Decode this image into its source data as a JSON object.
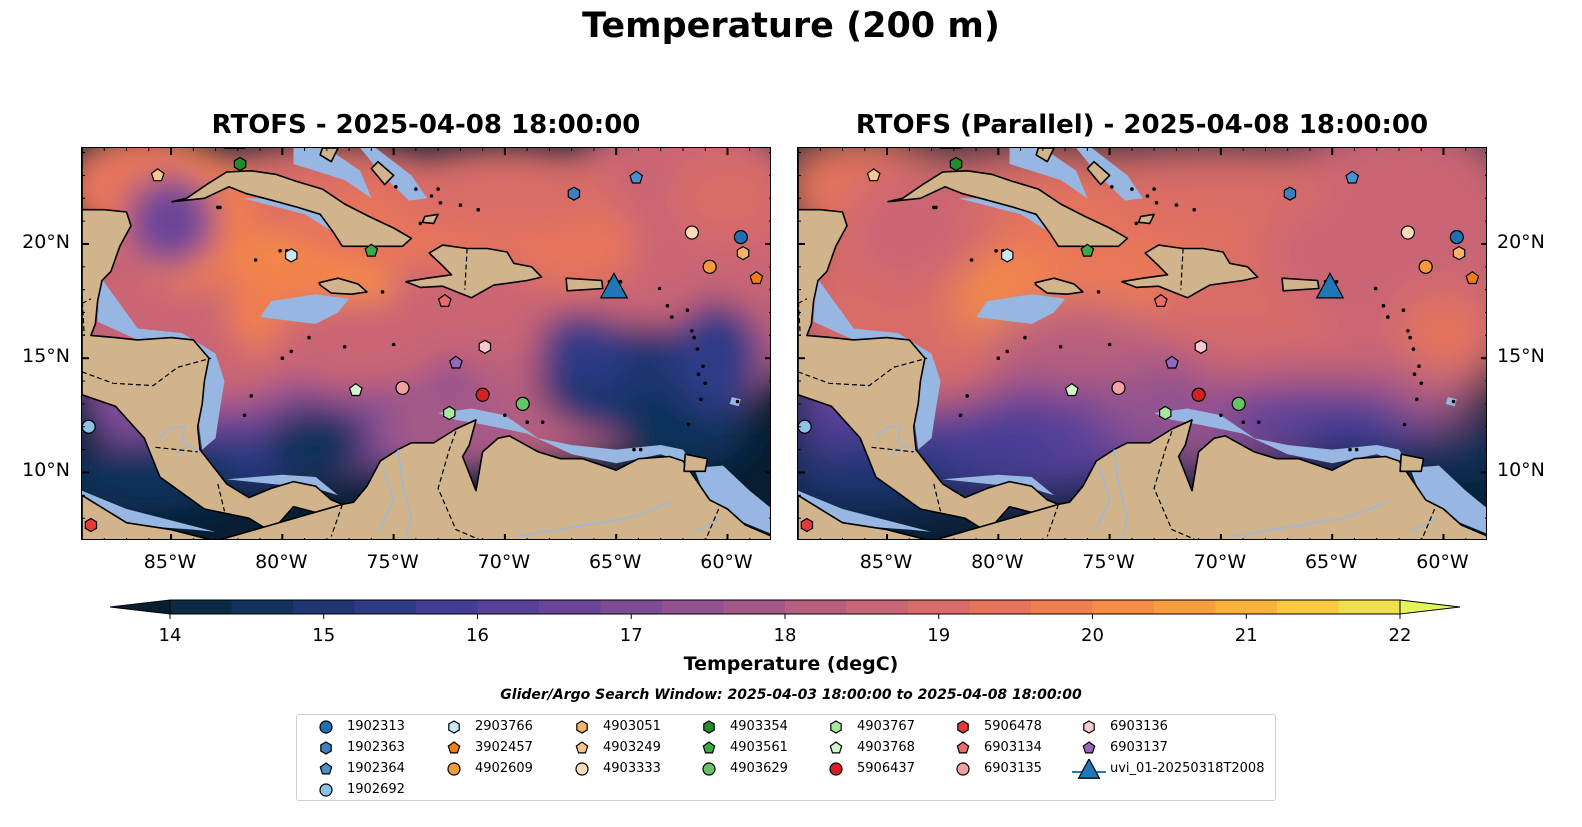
{
  "figure": {
    "title": "Temperature (200 m)",
    "window_text": "Glider/Argo Search Window: 2025-04-03 18:00:00 to 2025-04-08 18:00:00"
  },
  "panels": [
    {
      "title": "RTOFS - 2025-04-08 18:00:00",
      "tick_side": "left"
    },
    {
      "title": "RTOFS (Parallel) - 2025-04-08 18:00:00",
      "tick_side": "right"
    }
  ],
  "map_extent": {
    "lon": [
      -89,
      -58
    ],
    "lat": [
      7,
      24.2
    ]
  },
  "lon_ticks": [
    {
      "value": -85,
      "label": "85°W"
    },
    {
      "value": -80,
      "label": "80°W"
    },
    {
      "value": -75,
      "label": "75°W"
    },
    {
      "value": -70,
      "label": "70°W"
    },
    {
      "value": -65,
      "label": "65°W"
    },
    {
      "value": -60,
      "label": "60°W"
    }
  ],
  "lat_ticks": [
    {
      "value": 10,
      "label": "10°N"
    },
    {
      "value": 15,
      "label": "15°N"
    },
    {
      "value": 20,
      "label": "20°N"
    }
  ],
  "colorbar": {
    "label": "Temperature (degC)",
    "min": 14,
    "max": 22,
    "step": 0.5,
    "ticks": [
      "14",
      "15",
      "16",
      "17",
      "18",
      "19",
      "20",
      "21",
      "22"
    ],
    "colors": [
      "#0b2a45",
      "#10325c",
      "#1f3672",
      "#2e3a86",
      "#433d94",
      "#573f9a",
      "#6a4599",
      "#7e4b96",
      "#915290",
      "#a45a88",
      "#b85f7e",
      "#c96574",
      "#d86c67",
      "#e6745b",
      "#f07f4f",
      "#f68c45",
      "#f99e3f",
      "#fbb23c",
      "#f9c940",
      "#f0e050"
    ],
    "under_color": "#071e33",
    "over_color": "#e3f55b"
  },
  "legend": {
    "items": [
      {
        "id": "1902313",
        "marker": "circle",
        "color": "#1f6fb4"
      },
      {
        "id": "1902363",
        "marker": "hexagon",
        "color": "#3f7fbf"
      },
      {
        "id": "1902364",
        "marker": "pentagon",
        "color": "#4a90cc"
      },
      {
        "id": "1902692",
        "marker": "circle",
        "color": "#8ec1e6"
      },
      {
        "id": "2903766",
        "marker": "hexagon",
        "color": "#c9e8f5"
      },
      {
        "id": "3902457",
        "marker": "pentagon",
        "color": "#f07e12"
      },
      {
        "id": "4902609",
        "marker": "circle",
        "color": "#f39a3d"
      },
      {
        "id": "4903051",
        "marker": "hexagon",
        "color": "#f6b26b"
      },
      {
        "id": "4903249",
        "marker": "pentagon",
        "color": "#f9c690"
      },
      {
        "id": "4903333",
        "marker": "circle",
        "color": "#fcdcb8"
      },
      {
        "id": "4903354",
        "marker": "hexagon",
        "color": "#238b2c"
      },
      {
        "id": "4903561",
        "marker": "pentagon",
        "color": "#3ea845"
      },
      {
        "id": "4903629",
        "marker": "circle",
        "color": "#66c466"
      },
      {
        "id": "4903767",
        "marker": "hexagon",
        "color": "#a9e6a0"
      },
      {
        "id": "4903768",
        "marker": "pentagon",
        "color": "#d4f5c9"
      },
      {
        "id": "5906437",
        "marker": "circle",
        "color": "#d62020"
      },
      {
        "id": "5906478",
        "marker": "hexagon",
        "color": "#e33a3a"
      },
      {
        "id": "6903134",
        "marker": "pentagon",
        "color": "#ec6b6b"
      },
      {
        "id": "6903135",
        "marker": "circle",
        "color": "#f3a0a0"
      },
      {
        "id": "6903136",
        "marker": "hexagon",
        "color": "#f9c9cf"
      },
      {
        "id": "6903137",
        "marker": "pentagon",
        "color": "#9467bd"
      },
      {
        "id": "uvi_01-20250318T2008",
        "marker": "triangle",
        "color": "#1f77b4"
      }
    ]
  },
  "observations": [
    {
      "id": "1902313",
      "lon": -59.4,
      "lat": 20.3
    },
    {
      "id": "1902363",
      "lon": -66.9,
      "lat": 22.2
    },
    {
      "id": "1902364",
      "lon": -64.1,
      "lat": 22.9
    },
    {
      "id": "1902692",
      "lon": -88.7,
      "lat": 12.0
    },
    {
      "id": "2903766",
      "lon": -79.6,
      "lat": 19.5
    },
    {
      "id": "3902457",
      "lon": -58.7,
      "lat": 18.5
    },
    {
      "id": "4902609",
      "lon": -60.8,
      "lat": 19.0
    },
    {
      "id": "4903051",
      "lon": -59.3,
      "lat": 19.6
    },
    {
      "id": "4903249",
      "lon": -85.6,
      "lat": 23.0
    },
    {
      "id": "4903333",
      "lon": -61.6,
      "lat": 20.5
    },
    {
      "id": "4903354",
      "lon": -81.9,
      "lat": 23.5
    },
    {
      "id": "4903561",
      "lon": -76.0,
      "lat": 19.7
    },
    {
      "id": "4903629",
      "lon": -69.2,
      "lat": 13.0
    },
    {
      "id": "4903767",
      "lon": -72.5,
      "lat": 12.6
    },
    {
      "id": "4903768",
      "lon": -76.7,
      "lat": 13.6
    },
    {
      "id": "5906437",
      "lon": -71.0,
      "lat": 13.4
    },
    {
      "id": "5906478",
      "lon": -88.6,
      "lat": 7.7
    },
    {
      "id": "6903134",
      "lon": -72.7,
      "lat": 17.5
    },
    {
      "id": "6903135",
      "lon": -74.6,
      "lat": 13.7
    },
    {
      "id": "6903136",
      "lon": -70.9,
      "lat": 15.5
    },
    {
      "id": "6903137",
      "lon": -72.2,
      "lat": 14.8
    },
    {
      "id": "uvi_01-20250318T2008",
      "lon": -65.1,
      "lat": 18.1
    }
  ]
}
